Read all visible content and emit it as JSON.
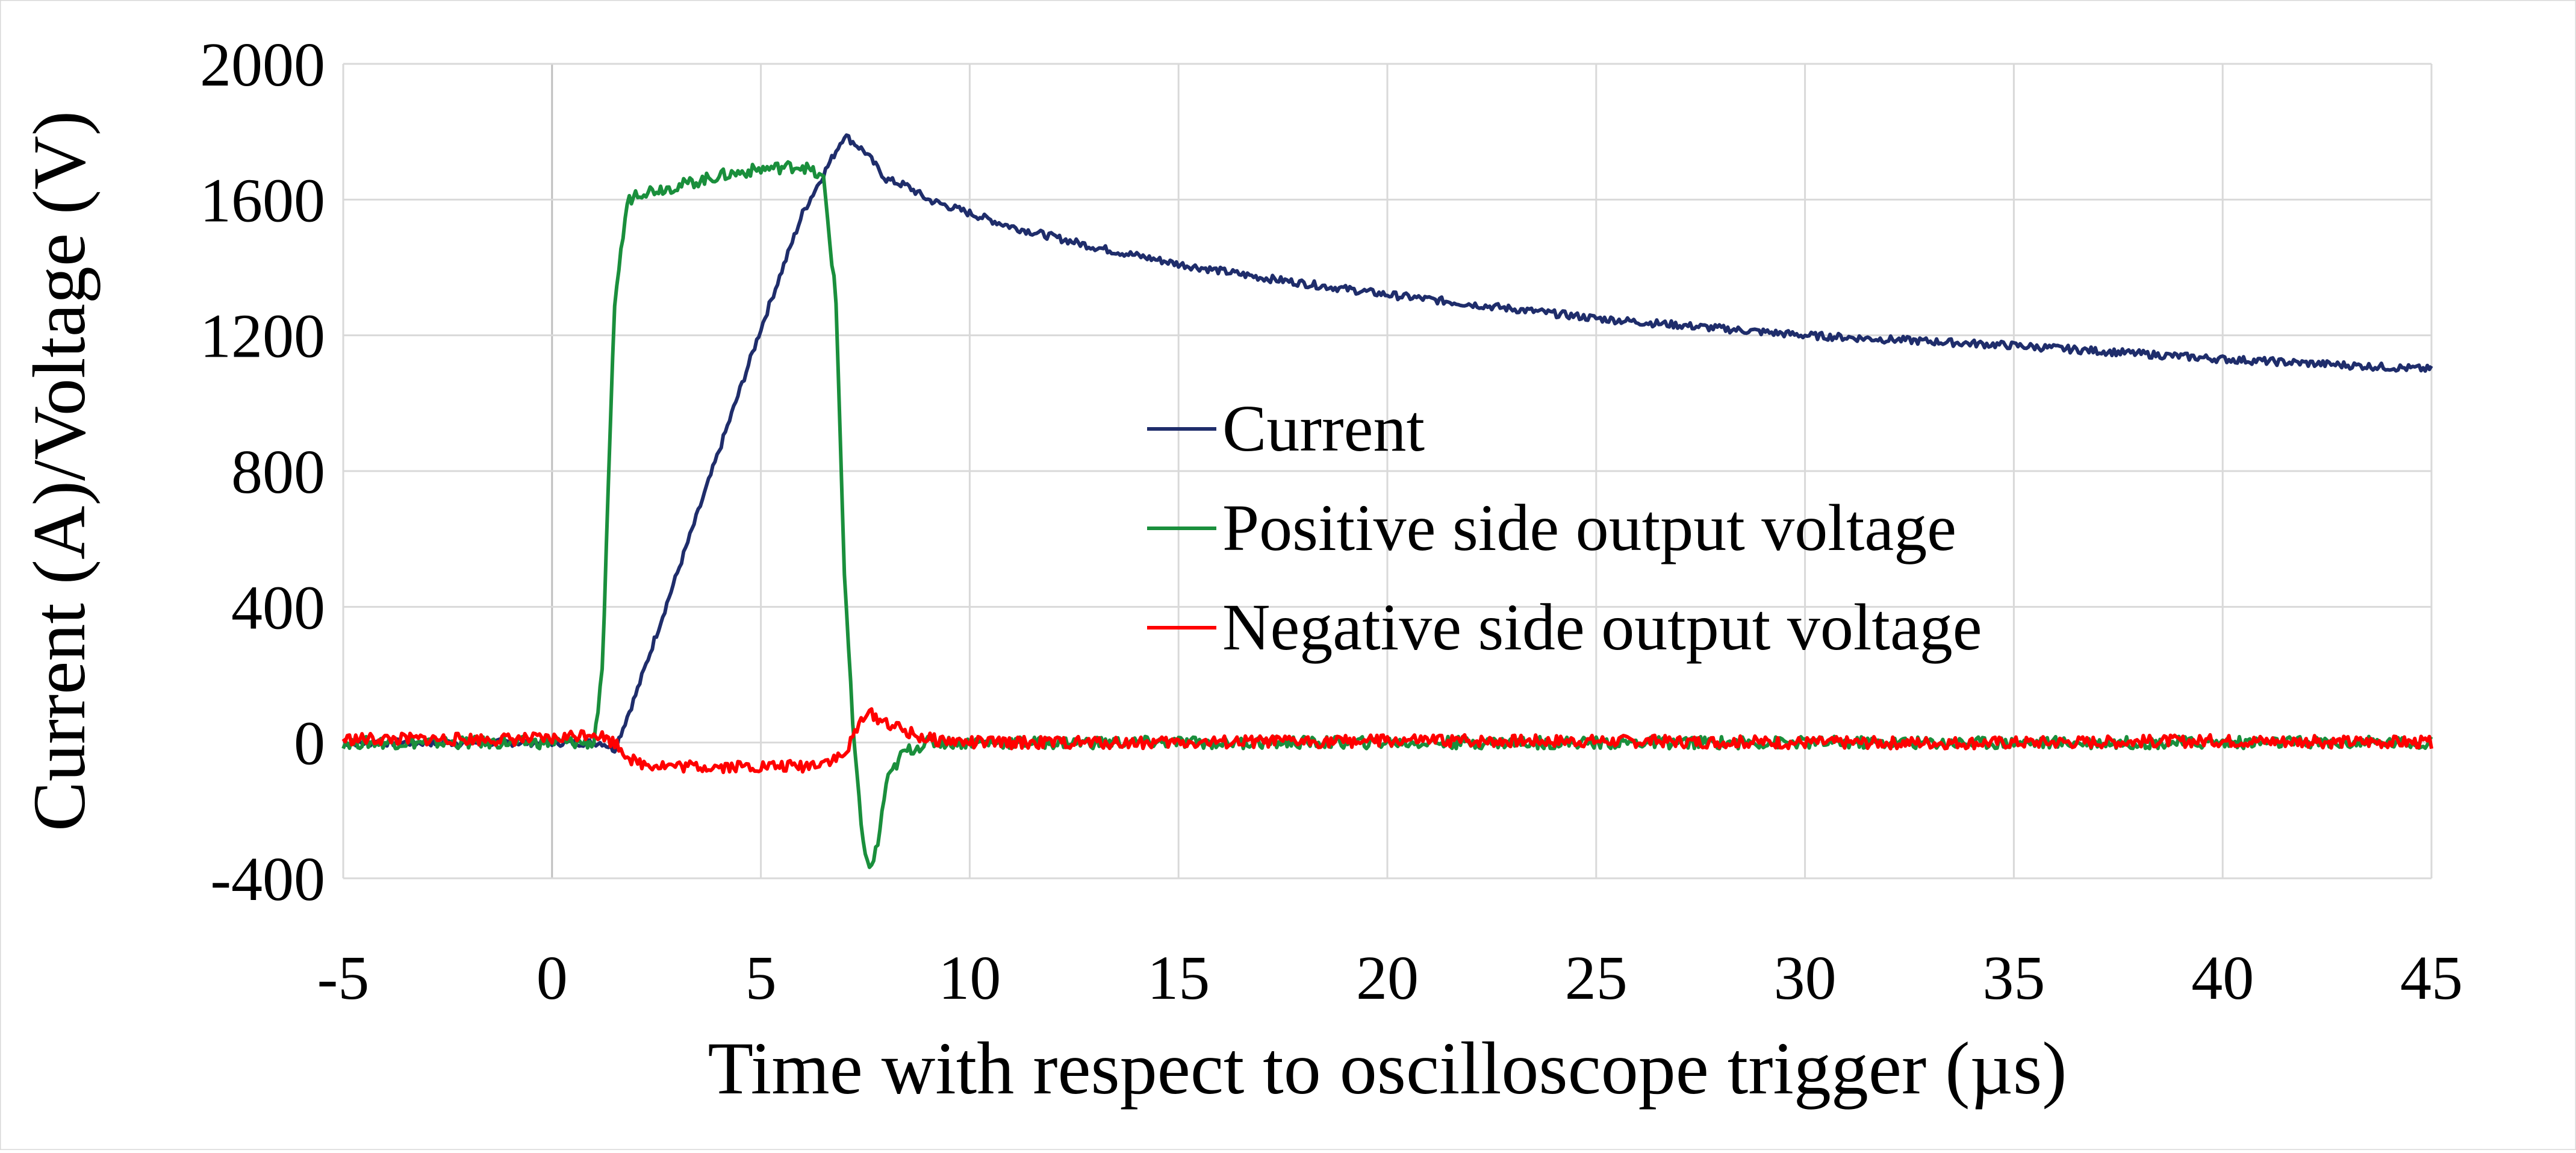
{
  "chart_data": {
    "type": "line",
    "title": "",
    "xlabel": "Time with respect to oscilloscope trigger (µs)",
    "ylabel": "Current (A)/Voltage (V)",
    "xlim": [
      -5,
      45
    ],
    "ylim": [
      -400,
      2000
    ],
    "x_ticks": [
      "-5",
      "0",
      "5",
      "10",
      "15",
      "20",
      "25",
      "30",
      "35",
      "40",
      "45"
    ],
    "y_ticks": [
      "-400",
      "0",
      "400",
      "800",
      "1200",
      "1600",
      "2000"
    ],
    "grid": true,
    "legend_position": "center",
    "series": [
      {
        "name": "Current",
        "color": "#1F2D6B",
        "x": [
          -5,
          0,
          1.2,
          1.5,
          2,
          3,
          4,
          5,
          6,
          7,
          7.5,
          8,
          8.5,
          9,
          10,
          11,
          12,
          13,
          15,
          17,
          20,
          25,
          30,
          35,
          40,
          45
        ],
        "y": [
          0,
          0,
          0,
          -20,
          140,
          500,
          860,
          1220,
          1560,
          1790,
          1740,
          1660,
          1640,
          1600,
          1560,
          1520,
          1490,
          1460,
          1410,
          1370,
          1320,
          1250,
          1200,
          1170,
          1130,
          1100
        ]
      },
      {
        "name": "Positive side output voltage",
        "color": "#1A8F3C",
        "x": [
          -5,
          0,
          1.0,
          1.2,
          1.5,
          1.8,
          2.0,
          3,
          4,
          5,
          6,
          6.5,
          6.8,
          7.0,
          7.2,
          7.4,
          7.6,
          7.8,
          8.0,
          8.4,
          9,
          10,
          15,
          20,
          25,
          30,
          35,
          40,
          45
        ],
        "y": [
          0,
          0,
          0,
          200,
          1300,
          1590,
          1620,
          1640,
          1670,
          1690,
          1700,
          1660,
          1300,
          500,
          50,
          -250,
          -380,
          -300,
          -120,
          -30,
          0,
          0,
          0,
          0,
          0,
          0,
          0,
          0,
          0
        ]
      },
      {
        "name": "Negative side output voltage",
        "color": "#FF0000",
        "x": [
          -5,
          0,
          1.0,
          1.5,
          2,
          3,
          4,
          5,
          6,
          7,
          7.5,
          8,
          8.5,
          9,
          10,
          15,
          20,
          25,
          30,
          35,
          40,
          45
        ],
        "y": [
          10,
          10,
          30,
          0,
          -60,
          -70,
          -70,
          -70,
          -70,
          -40,
          90,
          60,
          30,
          10,
          0,
          0,
          5,
          5,
          0,
          0,
          5,
          0
        ]
      }
    ]
  }
}
